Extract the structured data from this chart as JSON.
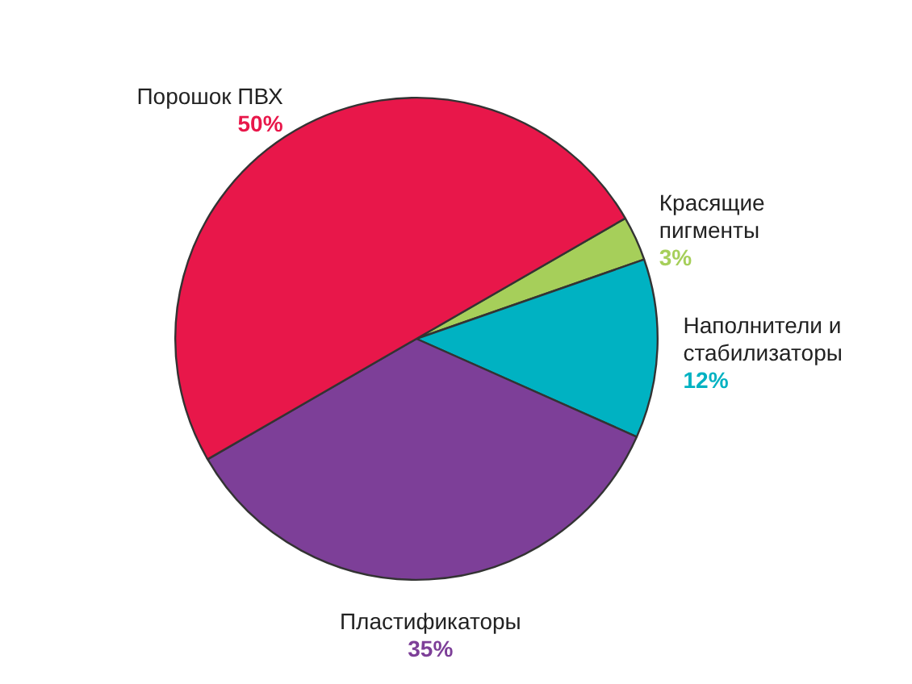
{
  "chart_data": {
    "type": "pie",
    "categories": [
      "Красящие пигменты",
      "Наполнители и стабилизаторы",
      "Пластификаторы",
      "Порошок ПВХ"
    ],
    "values": [
      3,
      12,
      35,
      50
    ],
    "colors": [
      "#a6cf5a",
      "#00b2c2",
      "#7d3f98",
      "#e8174a"
    ],
    "value_labels": [
      "3%",
      "12%",
      "35%",
      "50%"
    ],
    "legend": false
  }
}
